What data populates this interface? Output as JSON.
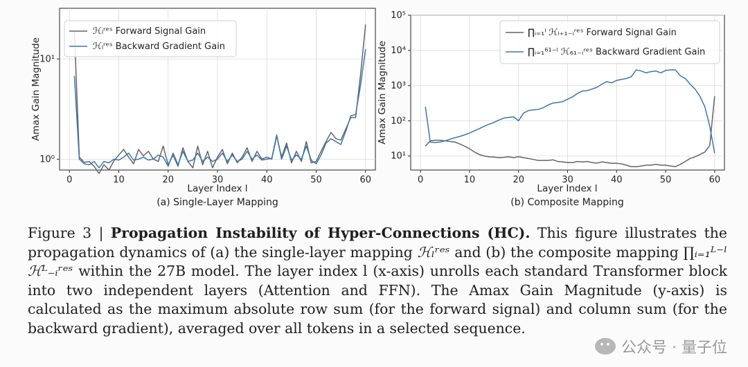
{
  "chart_data": [
    {
      "type": "line",
      "subtitle": "(a) Single-Layer Mapping",
      "xlabel": "Layer Index l",
      "ylabel": "Amax Gain Magnitude",
      "yscale": "log",
      "xlim": [
        -2,
        62
      ],
      "ylim": [
        0.78,
        32
      ],
      "xticks": [
        0,
        10,
        20,
        30,
        40,
        50,
        60
      ],
      "yticks": [
        {
          "value": 1,
          "label": "10⁰"
        },
        {
          "value": 10,
          "label": "10¹"
        }
      ],
      "grid": true,
      "legend_position": "upper-left",
      "series": [
        {
          "name": "ℋₗʳᵉˢ Forward Signal Gain",
          "color": "#636363",
          "x": [
            1,
            2,
            3,
            4,
            5,
            6,
            7,
            8,
            9,
            10,
            11,
            12,
            13,
            14,
            15,
            16,
            17,
            18,
            19,
            20,
            21,
            22,
            23,
            24,
            25,
            26,
            27,
            28,
            29,
            30,
            31,
            32,
            33,
            34,
            35,
            36,
            37,
            38,
            39,
            40,
            41,
            42,
            43,
            44,
            45,
            46,
            47,
            48,
            49,
            50,
            51,
            52,
            53,
            54,
            55,
            56,
            57,
            58,
            59,
            60
          ],
          "y": [
            19,
            1.05,
            0.93,
            0.95,
            0.85,
            0.72,
            0.88,
            0.78,
            0.96,
            1.1,
            1.25,
            1.05,
            0.9,
            1.25,
            1.08,
            1.2,
            1.0,
            0.95,
            1.35,
            0.88,
            1.1,
            0.85,
            1.3,
            0.95,
            0.82,
            1.35,
            0.88,
            1.2,
            0.82,
            1.05,
            1.25,
            0.9,
            1.15,
            0.92,
            1.05,
            1.3,
            0.95,
            1.2,
            1.0,
            1.05,
            1.0,
            1.7,
            1.05,
            1.45,
            0.92,
            1.2,
            0.95,
            1.5,
            0.92,
            0.95,
            1.2,
            1.5,
            1.85,
            1.6,
            1.55,
            2.0,
            2.6,
            2.6,
            7.0,
            22
          ]
        },
        {
          "name": "ℋₗʳᵉˢ Backward Gradient Gain",
          "color": "#3b75af",
          "x": [
            1,
            2,
            3,
            4,
            5,
            6,
            7,
            8,
            9,
            10,
            11,
            12,
            13,
            14,
            15,
            16,
            17,
            18,
            19,
            20,
            21,
            22,
            23,
            24,
            25,
            26,
            27,
            28,
            29,
            30,
            31,
            32,
            33,
            34,
            35,
            36,
            37,
            38,
            39,
            40,
            41,
            42,
            43,
            44,
            45,
            46,
            47,
            48,
            49,
            50,
            51,
            52,
            53,
            54,
            55,
            56,
            57,
            58,
            59,
            60
          ],
          "y": [
            6.8,
            1.0,
            0.9,
            0.88,
            0.95,
            0.82,
            0.95,
            0.92,
            1.0,
            0.98,
            1.05,
            1.15,
            0.98,
            1.0,
            1.05,
            0.98,
            1.0,
            1.1,
            1.05,
            0.85,
            1.15,
            0.88,
            1.2,
            0.95,
            0.98,
            1.15,
            0.95,
            1.05,
            0.95,
            1.0,
            1.15,
            0.95,
            1.1,
            0.95,
            1.0,
            1.2,
            1.0,
            1.1,
            0.98,
            1.0,
            1.02,
            1.75,
            1.0,
            1.35,
            0.98,
            1.1,
            1.0,
            1.35,
            0.98,
            0.9,
            1.1,
            1.45,
            1.6,
            1.5,
            1.4,
            1.9,
            2.7,
            2.8,
            5.5,
            12.5
          ]
        }
      ]
    },
    {
      "type": "line",
      "subtitle": "(b) Composite Mapping",
      "xlabel": "Layer Index l",
      "ylabel": "Amax Gain Magnitude",
      "yscale": "log",
      "xlim": [
        -2,
        62
      ],
      "ylim": [
        4,
        100000
      ],
      "xticks": [
        0,
        10,
        20,
        30,
        40,
        50,
        60
      ],
      "yticks": [
        {
          "value": 10,
          "label": "10¹"
        },
        {
          "value": 100,
          "label": "10²"
        },
        {
          "value": 1000,
          "label": "10³"
        },
        {
          "value": 10000,
          "label": "10⁴"
        },
        {
          "value": 100000,
          "label": "10⁵"
        }
      ],
      "grid": true,
      "legend_position": "upper-right",
      "series": [
        {
          "name": "∏ᵢ₌₁ˡ ℋₗ₊₁₋ᵢʳᵉˢ Forward Signal Gain",
          "color": "#636363",
          "x": [
            1,
            2,
            3,
            4,
            5,
            6,
            7,
            8,
            9,
            10,
            11,
            12,
            13,
            14,
            15,
            16,
            17,
            18,
            19,
            20,
            21,
            22,
            23,
            24,
            25,
            26,
            27,
            28,
            29,
            30,
            31,
            32,
            33,
            34,
            35,
            36,
            37,
            38,
            39,
            40,
            41,
            42,
            43,
            44,
            45,
            46,
            47,
            48,
            49,
            50,
            51,
            52,
            53,
            54,
            55,
            56,
            57,
            58,
            59,
            60
          ],
          "y": [
            19,
            27,
            28,
            28,
            27,
            26,
            25,
            22,
            19,
            16,
            13,
            11,
            10,
            9.5,
            9.3,
            9.0,
            9.2,
            9.5,
            9.0,
            9.6,
            9.0,
            8.5,
            8.0,
            7.5,
            7.5,
            7.5,
            7.8,
            7.0,
            6.8,
            6.5,
            6.5,
            7.0,
            6.8,
            7.0,
            6.5,
            6.3,
            6.8,
            6.5,
            6.2,
            6.2,
            6.0,
            5.5,
            5.0,
            5.0,
            5.2,
            5.5,
            5.5,
            5.8,
            5.5,
            5.5,
            5.2,
            5.0,
            5.8,
            7.0,
            8.5,
            9.5,
            11,
            13,
            20,
            500
          ]
        },
        {
          "name": "∏ᵢ₌₁⁶¹⁻ˡ ℋ₆₁₋ᵢʳᵉˢ Backward Gradient Gain",
          "color": "#3b75af",
          "x": [
            1,
            2,
            3,
            4,
            5,
            6,
            7,
            8,
            9,
            10,
            11,
            12,
            13,
            14,
            15,
            16,
            17,
            18,
            19,
            20,
            21,
            22,
            23,
            24,
            25,
            26,
            27,
            28,
            29,
            30,
            31,
            32,
            33,
            34,
            35,
            36,
            37,
            38,
            39,
            40,
            41,
            42,
            43,
            44,
            45,
            46,
            47,
            48,
            49,
            50,
            51,
            52,
            53,
            54,
            55,
            56,
            57,
            58,
            59,
            60
          ],
          "y": [
            250,
            25,
            24,
            25,
            27,
            30,
            33,
            36,
            40,
            45,
            52,
            60,
            70,
            80,
            90,
            105,
            120,
            125,
            130,
            100,
            165,
            195,
            205,
            210,
            235,
            280,
            320,
            330,
            350,
            410,
            480,
            600,
            700,
            720,
            800,
            900,
            1100,
            1300,
            1200,
            1400,
            1500,
            1600,
            1800,
            2800,
            2600,
            2300,
            2500,
            2600,
            2300,
            2700,
            2800,
            2800,
            1900,
            1600,
            1100,
            800,
            500,
            250,
            70,
            12
          ]
        }
      ]
    }
  ],
  "caption": {
    "figure_label": "Figure 3 | ",
    "title": "Propagation Instability of Hyper-Connections (HC).",
    "text_1": " This figure illustrates the propagation dynamics of (a) the single-layer mapping ",
    "sym_single": "ℋₗʳᵉˢ",
    "text_2": " and (b) the composite mapping ",
    "sym_composite": "∏ᵢ₌₁ᴸ⁻ˡ ℋᴸ₋ᵢʳᵉˢ",
    "text_3": " within the 27B model. The layer index l (x-axis) unrolls each standard Transformer block into two independent layers (Attention and FFN). The Amax Gain Magnitude (y-axis) is calculated as the maximum absolute row sum (for the forward signal) and column sum (for the backward gradient), averaged over all tokens in a selected sequence."
  },
  "watermark": {
    "text": "公众号 · 量子位",
    "icon": "wechat-icon"
  }
}
